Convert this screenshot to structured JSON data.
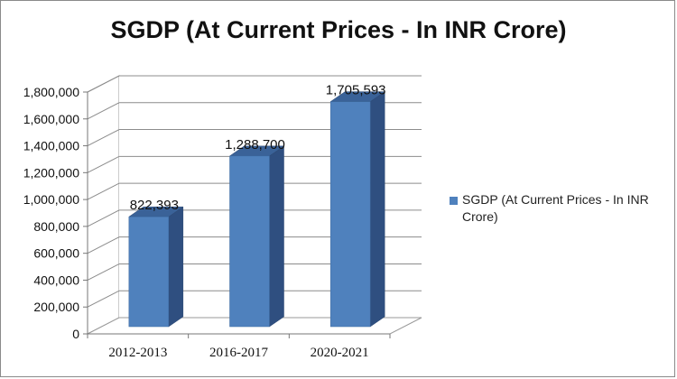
{
  "chart_data": {
    "type": "bar",
    "title": "SGDP (At Current Prices - In INR Crore)",
    "categories": [
      "2012-2013",
      "2016-2017",
      "2020-2021"
    ],
    "series": [
      {
        "name": "SGDP (At Current Prices - In INR Crore)",
        "values": [
          822393,
          1288700,
          1705593
        ],
        "labels": [
          "822,393",
          "1,288,700",
          "1,705,593"
        ],
        "color": "#4f81bd"
      }
    ],
    "y_ticks": [
      "0",
      "200,000",
      "400,000",
      "600,000",
      "800,000",
      "1,000,000",
      "1,200,000",
      "1,400,000",
      "1,600,000",
      "1,800,000"
    ],
    "ylim": [
      0,
      1800000
    ],
    "grid": true,
    "legend_position": "right",
    "xlabel": "",
    "ylabel": ""
  }
}
